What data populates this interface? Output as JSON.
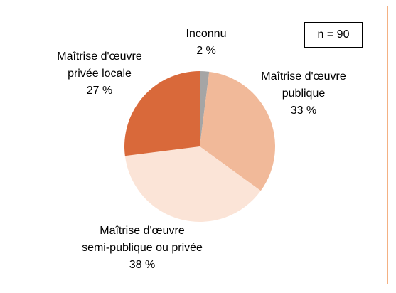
{
  "chart_data": {
    "type": "pie",
    "categories": [
      "Inconnu",
      "Maîtrise d'œuvre\npublique",
      "Maîtrise d'œuvre\nsemi-publique ou privée",
      "Maîtrise d'œuvre\nprivée locale"
    ],
    "values": [
      2,
      33,
      38,
      27
    ],
    "value_labels": [
      "2 %",
      "33 %",
      "38 %",
      "27 %"
    ],
    "colors": [
      "#a5a5a5",
      "#f1b999",
      "#fbe4d7",
      "#d9693a"
    ],
    "annotation": "n = 90"
  }
}
